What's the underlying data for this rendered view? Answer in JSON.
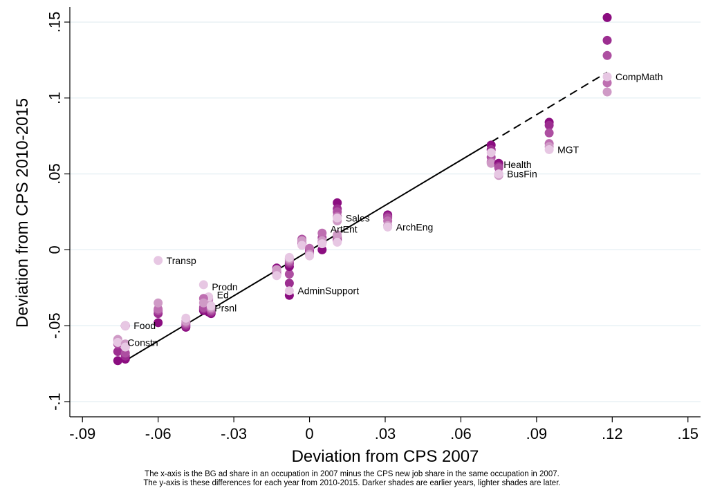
{
  "chart_data": {
    "type": "scatter",
    "title": "",
    "xlabel": "Deviation from CPS 2007",
    "ylabel": "Deviation from CPS 2010-2015",
    "xlim": [
      -0.095,
      0.155
    ],
    "ylim": [
      -0.11,
      0.16
    ],
    "x_ticks": [
      {
        "value": -0.09,
        "label": "-.09"
      },
      {
        "value": -0.06,
        "label": "-.06"
      },
      {
        "value": -0.03,
        "label": "-.03"
      },
      {
        "value": 0,
        "label": "0"
      },
      {
        "value": 0.03,
        "label": ".03"
      },
      {
        "value": 0.06,
        "label": ".06"
      },
      {
        "value": 0.09,
        "label": ".09"
      },
      {
        "value": 0.12,
        "label": ".12"
      },
      {
        "value": 0.15,
        "label": ".15"
      }
    ],
    "y_ticks": [
      {
        "value": -0.1,
        "label": "-.1"
      },
      {
        "value": -0.05,
        "label": "-.05"
      },
      {
        "value": 0,
        "label": "0"
      },
      {
        "value": 0.05,
        "label": ".05"
      },
      {
        "value": 0.1,
        "label": ".1"
      },
      {
        "value": 0.15,
        "label": ".15"
      }
    ],
    "grid": "horizontal",
    "year_colors": [
      "#8b0d80",
      "#9c2e90",
      "#ad4fa1",
      "#be6fb1",
      "#cf9ac6",
      "#e7c7e3"
    ],
    "fit_line": {
      "solid": {
        "x": [
          -0.073,
          0.072
        ],
        "y": [
          -0.073,
          0.071
        ]
      },
      "dashed": {
        "x": [
          0.072,
          0.118
        ],
        "y": [
          0.071,
          0.117
        ]
      }
    },
    "occupations": [
      {
        "name": "CompMath",
        "x": 0.118,
        "y": [
          0.153,
          0.138,
          0.128,
          0.11,
          0.104,
          0.114
        ],
        "label_dx": 12,
        "label_dy": 5
      },
      {
        "name": "MGT",
        "x": 0.095,
        "y": [
          0.084,
          0.082,
          0.077,
          0.07,
          0.068,
          0.066
        ],
        "label_dx": 12,
        "label_dy": 5
      },
      {
        "name": "Health",
        "x": 0.072,
        "y": [
          0.069,
          0.066,
          0.061,
          0.058,
          0.057,
          0.064
        ],
        "label_dx": 18,
        "label_dy": 22
      },
      {
        "name": "BusFin",
        "x": 0.075,
        "y": [
          0.057,
          0.055,
          0.054,
          0.05,
          0.049,
          0.05
        ],
        "label_dx": 12,
        "label_dy": 5
      },
      {
        "name": "Sales",
        "x": 0.011,
        "y": [
          0.031,
          0.027,
          0.025,
          0.022,
          0.019,
          0.021
        ],
        "label_dx": 12,
        "label_dy": 5
      },
      {
        "name": "ArchEng",
        "x": 0.031,
        "y": [
          0.023,
          0.022,
          0.021,
          0.019,
          0.016,
          0.015
        ],
        "label_dx": 12,
        "label_dy": 5
      },
      {
        "name": "ArtEnt",
        "x": 0.005,
        "y": [
          0.0,
          0.005,
          0.008,
          0.011,
          0.006,
          0.004
        ],
        "label_dx": 12,
        "label_dy": -16
      },
      {
        "name": "ArtEnt-b",
        "x": 0.011,
        "y": [
          0.006,
          0.007,
          0.008,
          0.009,
          0.01,
          0.005
        ],
        "label_dx": 0,
        "label_dy": 0,
        "hide_label": true
      },
      {
        "name": "AdminSupport",
        "x": -0.008,
        "y": [
          -0.03,
          -0.022,
          -0.016,
          -0.009,
          -0.006,
          -0.027
        ],
        "label_dx": 12,
        "label_dy": 5
      },
      {
        "name": "Admin-b",
        "x": -0.013,
        "y": [
          -0.012,
          -0.014,
          -0.016,
          -0.015,
          -0.013,
          -0.017
        ],
        "label_dx": 0,
        "label_dy": 0,
        "hide_label": true
      },
      {
        "name": "Admin-c",
        "x": -0.003,
        "y": [
          0.004,
          0.006,
          0.007,
          0.005,
          0.006,
          0.003
        ],
        "label_dx": 0,
        "label_dy": 0,
        "hide_label": true
      },
      {
        "name": "Admin-d",
        "x": 0.0,
        "y": [
          0.0,
          -0.001,
          -0.002,
          0.001,
          -0.003,
          -0.004
        ],
        "label_dx": 0,
        "label_dy": 0,
        "hide_label": true
      },
      {
        "name": "Admin-e",
        "x": -0.008,
        "y": [
          -0.011,
          -0.009,
          -0.008,
          -0.007,
          -0.006,
          -0.005
        ],
        "label_dx": 0,
        "label_dy": 0,
        "hide_label": true
      },
      {
        "name": "Transp",
        "x": -0.06,
        "y": [
          -0.048,
          -0.042,
          -0.04,
          -0.039,
          -0.035,
          -0.007
        ],
        "label_dx": 12,
        "label_dy": 5
      },
      {
        "name": "Ed",
        "x": -0.04,
        "y": [
          -0.041,
          -0.038,
          -0.036,
          -0.033,
          -0.032,
          -0.031
        ],
        "label_dx": 12,
        "label_dy": 2
      },
      {
        "name": "Prodn",
        "x": -0.042,
        "y": [
          -0.04,
          -0.039,
          -0.038,
          -0.032,
          -0.035,
          -0.023
        ],
        "label_dx": 12,
        "label_dy": 8
      },
      {
        "name": "Prsnl",
        "x": -0.039,
        "y": [
          -0.042,
          -0.041,
          -0.04,
          -0.039,
          -0.038,
          -0.037
        ],
        "label_dx": 5,
        "label_dy": 8
      },
      {
        "name": "Prodn-b",
        "x": -0.049,
        "y": [
          -0.051,
          -0.05,
          -0.049,
          -0.048,
          -0.047,
          -0.045
        ],
        "label_dx": 0,
        "label_dy": 0,
        "hide_label": true
      },
      {
        "name": "Food",
        "x": -0.073,
        "y": [
          -0.05,
          -0.05,
          -0.05,
          -0.05,
          -0.05,
          -0.05
        ],
        "label_dx": 12,
        "label_dy": 5
      },
      {
        "name": "Constn",
        "x": -0.076,
        "y": [
          -0.073,
          -0.067,
          -0.062,
          -0.06,
          -0.059,
          -0.061
        ],
        "label_dx": 14,
        "label_dy": 5
      },
      {
        "name": "Constn-b",
        "x": -0.073,
        "y": [
          -0.072,
          -0.07,
          -0.068,
          -0.064,
          -0.062,
          -0.064
        ],
        "label_dx": 0,
        "label_dy": 0,
        "hide_label": true
      }
    ]
  },
  "caption": {
    "line1": "The x-axis is the BG ad share in an occupation in 2007 minus the CPS new job share in the same occupation in 2007.",
    "line2": "The y-axis is these differences for each year from 2010-2015. Darker shades are earlier years, lighter shades are later."
  }
}
